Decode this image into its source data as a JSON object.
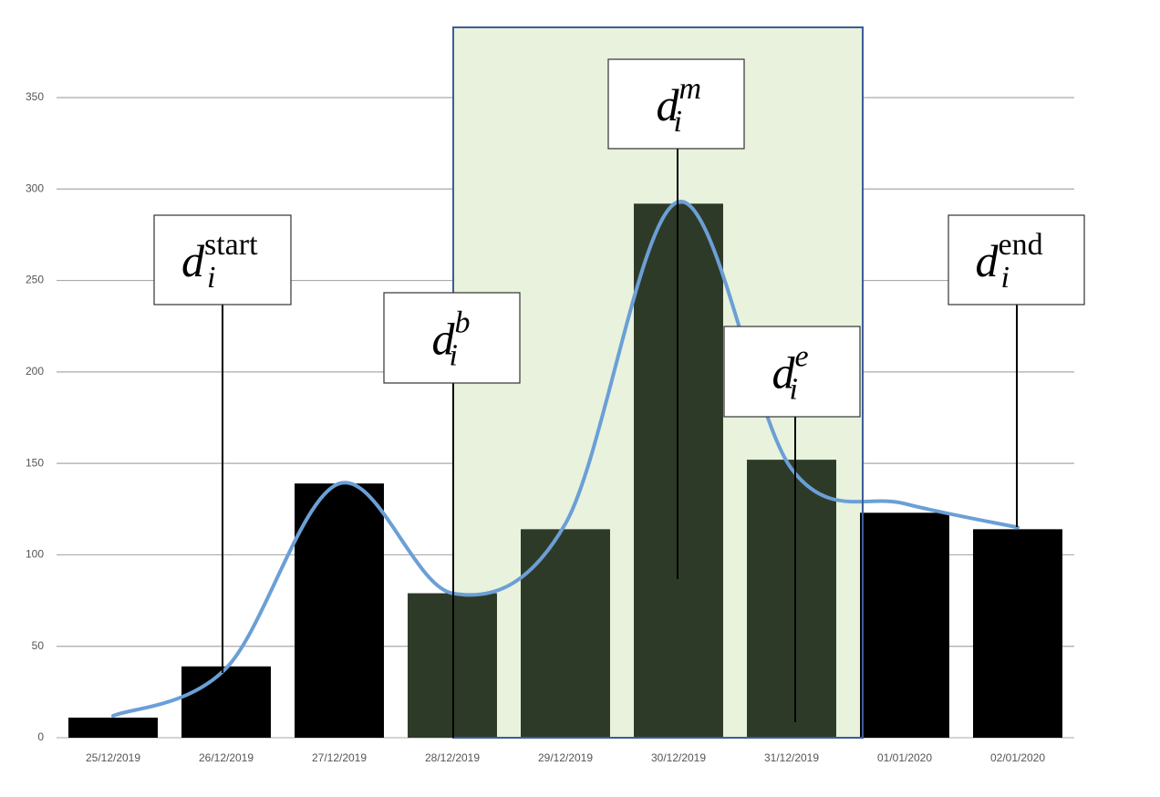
{
  "chart_data": {
    "type": "bar",
    "categories": [
      "25/12/2019",
      "26/12/2019",
      "27/12/2019",
      "28/12/2019",
      "29/12/2019",
      "30/12/2019",
      "31/12/2019",
      "01/01/2020",
      "02/01/2020"
    ],
    "series": [
      {
        "type": "bar",
        "values": [
          11,
          39,
          139,
          79,
          114,
          292,
          152,
          123,
          114
        ],
        "colors": [
          "#000000",
          "#000000",
          "#000000",
          "#2e3a28",
          "#2e3a28",
          "#2e3a28",
          "#2e3a28",
          "#000000",
          "#000000"
        ]
      },
      {
        "type": "line",
        "color": "#6b9fd6",
        "values": [
          12,
          38,
          139,
          79,
          117,
          293,
          147,
          128,
          115
        ]
      }
    ],
    "ylim": [
      0,
      350
    ],
    "yticks": [
      0,
      50,
      100,
      150,
      200,
      250,
      300,
      350
    ],
    "grid": true,
    "highlight": {
      "fill": "#e8f2dc",
      "stroke": "#3d5c99"
    },
    "annotations": [
      {
        "base": "d",
        "sub": "i",
        "sup": "start"
      },
      {
        "base": "d",
        "sub": "i",
        "sup": "b"
      },
      {
        "base": "d",
        "sub": "i",
        "sup": "m"
      },
      {
        "base": "d",
        "sub": "i",
        "sup": "e"
      },
      {
        "base": "d",
        "sub": "i",
        "sup": "end"
      }
    ]
  }
}
